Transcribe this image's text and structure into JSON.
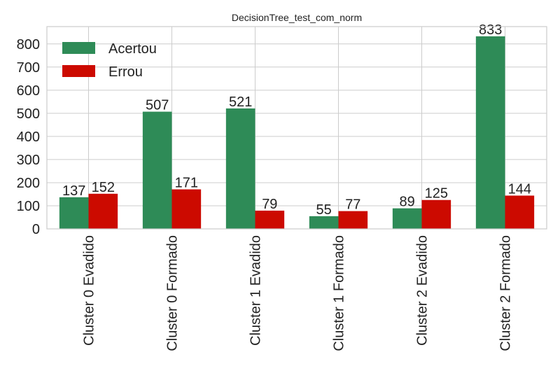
{
  "chart_data": {
    "type": "bar",
    "title": "DecisionTree_test_com_norm",
    "categories": [
      "Cluster 0 Evadido",
      "Cluster 0 Formado",
      "Cluster 1 Evadido",
      "Cluster 1 Formado",
      "Cluster 2 Evadido",
      "Cluster 2 Formado"
    ],
    "series": [
      {
        "name": "Acertou",
        "color": "#2e8b57",
        "values": [
          137,
          507,
          521,
          55,
          89,
          833
        ]
      },
      {
        "name": "Errou",
        "color": "#cc0a00",
        "values": [
          152,
          171,
          79,
          77,
          125,
          144
        ]
      }
    ],
    "yticks": [
      0,
      100,
      200,
      300,
      400,
      500,
      600,
      700,
      800
    ],
    "ylim": [
      0,
      875
    ],
    "xlabel": "",
    "ylabel": "",
    "grid": true,
    "legend_position": "top-left"
  }
}
